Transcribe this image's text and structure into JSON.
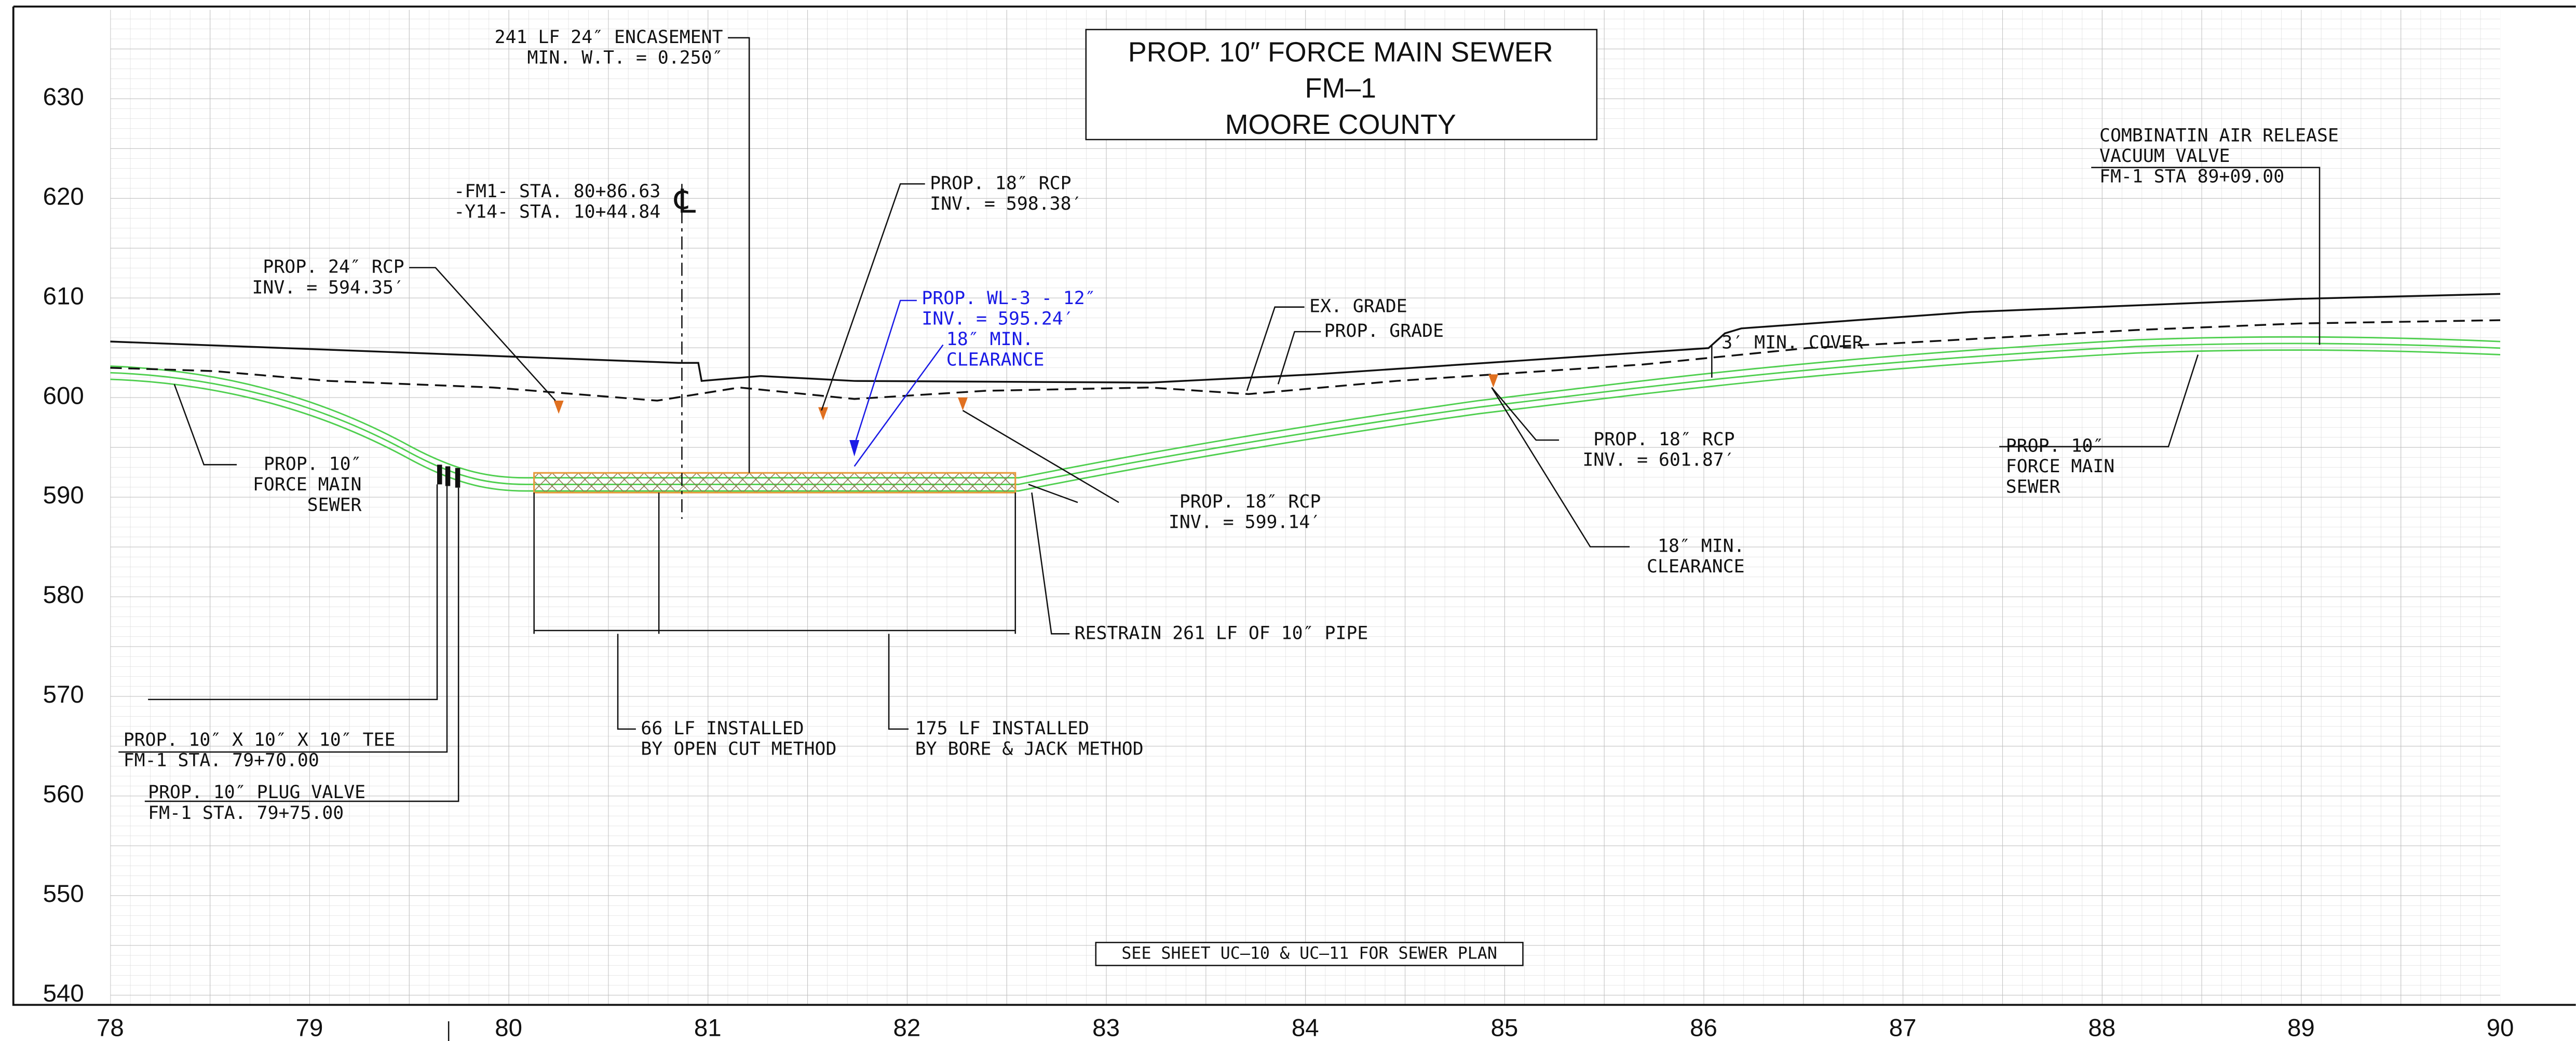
{
  "title": {
    "lines": [
      "PROP. 10″ FORCE MAIN  SEWER",
      "FM–1",
      "MOORE COUNTY"
    ]
  },
  "elevation_labels": [
    "630",
    "620",
    "610",
    "600",
    "590",
    "580",
    "570",
    "560",
    "550",
    "540"
  ],
  "station_labels": [
    "78",
    "79",
    "80",
    "81",
    "82",
    "83",
    "84",
    "85",
    "86",
    "87",
    "88",
    "89",
    "90"
  ],
  "centerline_symbol": "℄",
  "annotations": [
    {
      "lines": [
        "241 LF 24″ ENCASEMENT",
        "MIN. W.T. = 0.250″"
      ]
    },
    {
      "lines": [
        "-FM1- STA. 80+86.63",
        "-Y14- STA. 10+44.84"
      ]
    },
    {
      "lines": [
        "PROP. 24″ RCP",
        "INV. = 594.35′"
      ]
    },
    {
      "lines": [
        "PROP. 18″ RCP",
        "INV. = 598.38′"
      ]
    },
    {
      "lines": [
        "PROP. WL-3 - 12″",
        "INV. = 595.24′"
      ]
    },
    {
      "lines": [
        "18″ MIN.",
        "CLEARANCE"
      ]
    },
    {
      "lines": [
        "EX. GRADE"
      ]
    },
    {
      "lines": [
        "PROP. GRADE"
      ]
    },
    {
      "lines": [
        "3′ MIN. COVER"
      ]
    },
    {
      "lines": [
        "COMBINATIN AIR RELEASE",
        "VACUUM VALVE",
        "FM-1 STA 89+09.00"
      ]
    },
    {
      "lines": [
        "PROP. 10″",
        "FORCE MAIN",
        "SEWER"
      ]
    },
    {
      "lines": [
        "PROP. 18″ RCP",
        "INV. = 599.14′"
      ]
    },
    {
      "lines": [
        "PROP. 18″ RCP",
        "INV. = 601.87′"
      ]
    },
    {
      "lines": [
        "18″ MIN.",
        "CLEARANCE"
      ]
    },
    {
      "lines": [
        "PROP. 10″",
        "FORCE MAIN",
        "SEWER"
      ]
    },
    {
      "lines": [
        "RESTRAIN 261 LF OF 10″ PIPE"
      ]
    },
    {
      "lines": [
        "66 LF INSTALLED",
        "BY OPEN CUT METHOD"
      ]
    },
    {
      "lines": [
        "175 LF INSTALLED",
        "BY BORE & JACK METHOD"
      ]
    },
    {
      "lines": [
        "PROP. 10″ X 10″ X 10″ TEE",
        "FM-1 STA. 79+70.00"
      ]
    },
    {
      "lines": [
        "PROP. 10″ PLUG VALVE",
        "FM-1 STA. 79+75.00"
      ]
    }
  ],
  "note": "SEE SHEET UC–10 & UC–11 FOR SEWER PLAN"
}
